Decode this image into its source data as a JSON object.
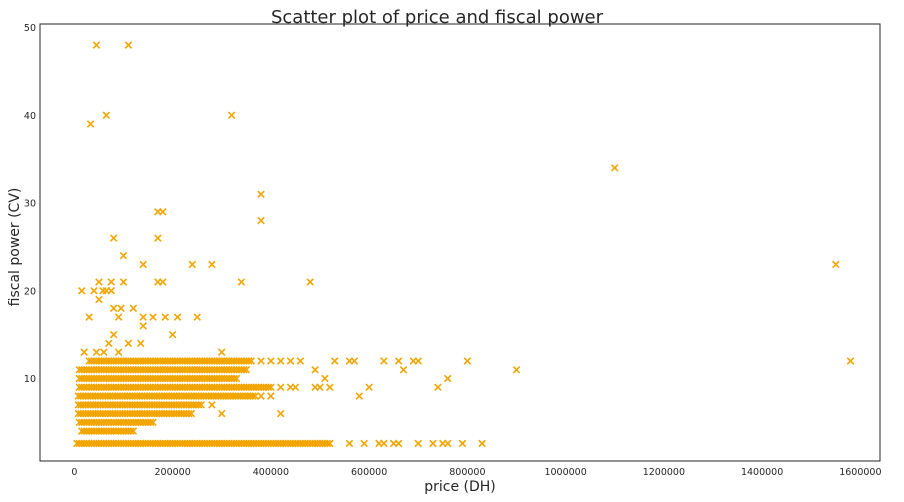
{
  "chart_data": {
    "type": "scatter",
    "title": "Scatter plot of price and fiscal power",
    "xlabel": "price (DH)",
    "ylabel": "fiscal power (CV)",
    "xlim": [
      -70000,
      1640000
    ],
    "ylim": [
      0.6,
      50.4
    ],
    "xticks": [
      "0",
      "200000",
      "400000",
      "600000",
      "800000",
      "1000000",
      "1200000",
      "1400000",
      "1600000"
    ],
    "yticks": [
      "10",
      "20",
      "30",
      "40",
      "50"
    ],
    "grid": false,
    "marker": "x",
    "color": "#f2a500",
    "series": [
      {
        "points": [
          [
            45000,
            48
          ],
          [
            110000,
            48
          ],
          [
            65000,
            40
          ],
          [
            320000,
            40
          ],
          [
            33000,
            39
          ],
          [
            1100000,
            34
          ],
          [
            380000,
            31
          ],
          [
            380000,
            28
          ],
          [
            170000,
            29
          ],
          [
            180000,
            29
          ],
          [
            80000,
            26
          ],
          [
            170000,
            26
          ],
          [
            100000,
            24
          ],
          [
            140000,
            23
          ],
          [
            240000,
            23
          ],
          [
            280000,
            23
          ],
          [
            1550000,
            23
          ],
          [
            50000,
            21
          ],
          [
            75000,
            21
          ],
          [
            100000,
            21
          ],
          [
            170000,
            21
          ],
          [
            180000,
            21
          ],
          [
            340000,
            21
          ],
          [
            480000,
            21
          ],
          [
            15000,
            20
          ],
          [
            40000,
            20
          ],
          [
            58000,
            20
          ],
          [
            65000,
            20
          ],
          [
            75000,
            20
          ],
          [
            50000,
            19
          ],
          [
            80000,
            18
          ],
          [
            120000,
            18
          ],
          [
            95000,
            18
          ],
          [
            90000,
            17
          ],
          [
            30000,
            17
          ],
          [
            140000,
            17
          ],
          [
            160000,
            17
          ],
          [
            185000,
            17
          ],
          [
            210000,
            17
          ],
          [
            250000,
            17
          ],
          [
            140000,
            16
          ],
          [
            200000,
            15
          ],
          [
            80000,
            15
          ],
          [
            110000,
            14
          ],
          [
            135000,
            14
          ],
          [
            70000,
            14
          ],
          [
            20000,
            13
          ],
          [
            45000,
            13
          ],
          [
            60000,
            13
          ],
          [
            90000,
            13
          ],
          [
            300000,
            13
          ],
          [
            380000,
            12
          ],
          [
            400000,
            12
          ],
          [
            420000,
            12
          ],
          [
            440000,
            12
          ],
          [
            460000,
            12
          ],
          [
            530000,
            12
          ],
          [
            560000,
            12
          ],
          [
            570000,
            12
          ],
          [
            630000,
            12
          ],
          [
            660000,
            12
          ],
          [
            690000,
            12
          ],
          [
            700000,
            12
          ],
          [
            800000,
            12
          ],
          [
            1580000,
            12
          ],
          [
            490000,
            11
          ],
          [
            670000,
            11
          ],
          [
            900000,
            11
          ],
          [
            510000,
            10
          ],
          [
            760000,
            10
          ],
          [
            420000,
            9
          ],
          [
            440000,
            9
          ],
          [
            450000,
            9
          ],
          [
            490000,
            9
          ],
          [
            500000,
            9
          ],
          [
            520000,
            9
          ],
          [
            600000,
            9
          ],
          [
            740000,
            9
          ],
          [
            380000,
            8
          ],
          [
            400000,
            8
          ],
          [
            580000,
            8
          ],
          [
            280000,
            7
          ],
          [
            300000,
            6
          ],
          [
            420000,
            6
          ],
          [
            560000,
            2.6
          ],
          [
            590000,
            2.6
          ],
          [
            620000,
            2.6
          ],
          [
            630000,
            2.6
          ],
          [
            650000,
            2.6
          ],
          [
            660000,
            2.6
          ],
          [
            700000,
            2.6
          ],
          [
            730000,
            2.6
          ],
          [
            750000,
            2.6
          ],
          [
            760000,
            2.6
          ],
          [
            790000,
            2.6
          ],
          [
            830000,
            2.6
          ]
        ],
        "dense_bands": [
          {
            "y": 2.6,
            "x_from": 5000,
            "x_to": 520000,
            "step": 5000
          },
          {
            "y": 4,
            "x_from": 15000,
            "x_to": 120000,
            "step": 5000
          },
          {
            "y": 5,
            "x_from": 10000,
            "x_to": 160000,
            "step": 5000
          },
          {
            "y": 6,
            "x_from": 8000,
            "x_to": 240000,
            "step": 5000
          },
          {
            "y": 7,
            "x_from": 8000,
            "x_to": 260000,
            "step": 5000
          },
          {
            "y": 8,
            "x_from": 8000,
            "x_to": 370000,
            "step": 5000
          },
          {
            "y": 9,
            "x_from": 10000,
            "x_to": 400000,
            "step": 5000
          },
          {
            "y": 10,
            "x_from": 10000,
            "x_to": 330000,
            "step": 5000
          },
          {
            "y": 11,
            "x_from": 10000,
            "x_to": 350000,
            "step": 5000
          },
          {
            "y": 12,
            "x_from": 30000,
            "x_to": 360000,
            "step": 5000
          }
        ]
      }
    ]
  }
}
